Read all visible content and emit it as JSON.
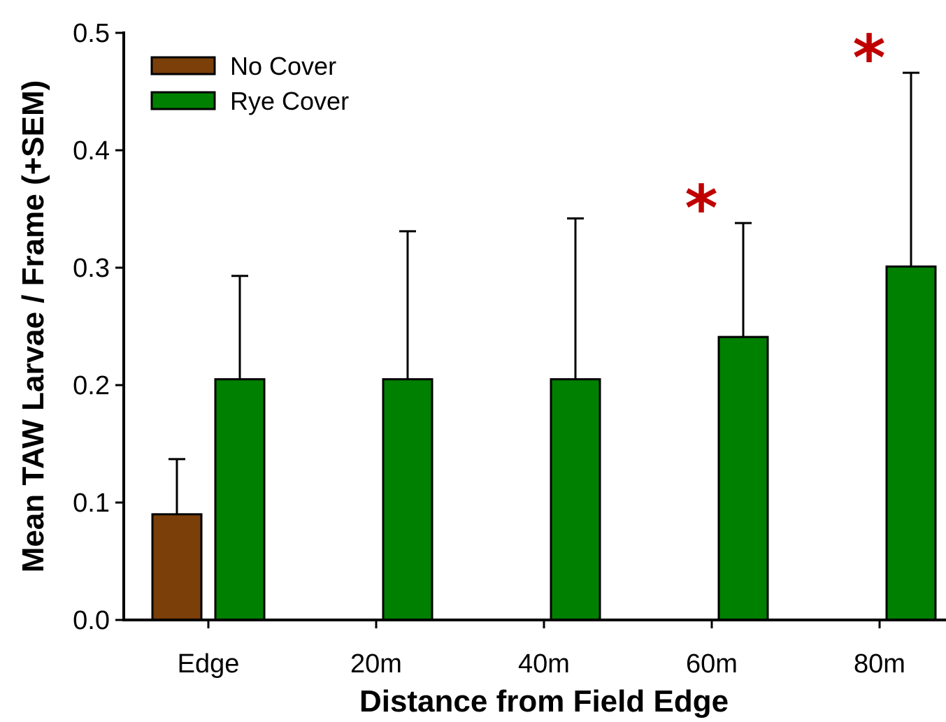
{
  "chart_data": {
    "type": "bar",
    "categories": [
      "Edge",
      "20m",
      "40m",
      "60m",
      "80m"
    ],
    "series": [
      {
        "name": "No Cover",
        "color": "#7B3F0A",
        "values": [
          0.09,
          null,
          null,
          null,
          null
        ],
        "sem_upper": [
          0.137,
          null,
          null,
          null,
          null
        ]
      },
      {
        "name": "Rye Cover",
        "color": "#008000",
        "values": [
          0.205,
          0.205,
          0.205,
          0.241,
          0.301
        ],
        "sem_upper": [
          0.293,
          0.331,
          0.342,
          0.338,
          0.466
        ]
      }
    ],
    "significance": {
      "symbol": "*",
      "color": "#C00000",
      "categories": [
        "60m",
        "80m"
      ]
    },
    "xlabel": "Distance from Field Edge",
    "ylabel": "Mean TAW Larvae / Frame (+SEM)",
    "ylim": [
      0,
      0.5
    ],
    "yticks": [
      "0.0",
      "0.1",
      "0.2",
      "0.3",
      "0.4",
      "0.5"
    ],
    "legend_position": "top-left",
    "grid": false
  }
}
